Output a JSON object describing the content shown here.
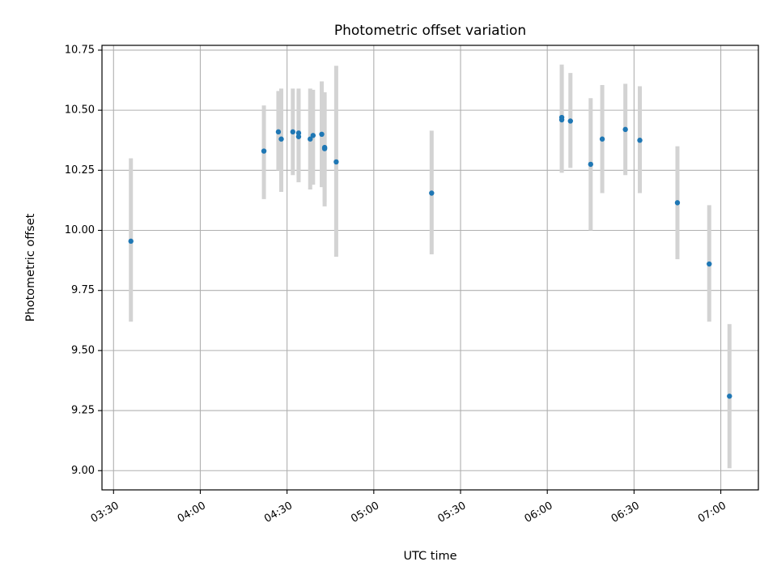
{
  "chart_data": {
    "type": "scatter",
    "title": "Photometric offset variation",
    "xlabel": "UTC time",
    "ylabel": "Photometric offset",
    "xlim": [
      "03:26",
      "07:13"
    ],
    "ylim": [
      8.92,
      10.77
    ],
    "grid": true,
    "legend": "none",
    "x_ticks": [
      "03:30",
      "04:00",
      "04:30",
      "05:00",
      "05:30",
      "06:00",
      "06:30",
      "07:00"
    ],
    "y_ticks": [
      9.0,
      9.25,
      9.5,
      9.75,
      10.0,
      10.25,
      10.5,
      10.75
    ],
    "y_tick_labels": [
      "9.00",
      "9.25",
      "9.50",
      "9.75",
      "10.00",
      "10.25",
      "10.50",
      "10.75"
    ],
    "colors": {
      "points": "#1f77b4",
      "error_bars": "#d3d3d3",
      "grid": "#b0b0b0",
      "axes": "#000000"
    },
    "series": [
      {
        "name": "offset",
        "points": [
          {
            "time": "03:36",
            "y": 9.955,
            "lo": 9.62,
            "hi": 10.3
          },
          {
            "time": "04:22",
            "y": 10.33,
            "lo": 10.13,
            "hi": 10.52
          },
          {
            "time": "04:27",
            "y": 10.41,
            "lo": 10.25,
            "hi": 10.58
          },
          {
            "time": "04:28",
            "y": 10.38,
            "lo": 10.16,
            "hi": 10.59
          },
          {
            "time": "04:32",
            "y": 10.41,
            "lo": 10.23,
            "hi": 10.59
          },
          {
            "time": "04:34",
            "y": 10.405,
            "lo": 10.22,
            "hi": 10.59
          },
          {
            "time": "04:34",
            "y": 10.39,
            "lo": 10.2,
            "hi": 10.575
          },
          {
            "time": "04:38",
            "y": 10.38,
            "lo": 10.17,
            "hi": 10.59
          },
          {
            "time": "04:39",
            "y": 10.395,
            "lo": 10.19,
            "hi": 10.585
          },
          {
            "time": "04:42",
            "y": 10.4,
            "lo": 10.18,
            "hi": 10.62
          },
          {
            "time": "04:43",
            "y": 10.345,
            "lo": 10.12,
            "hi": 10.565
          },
          {
            "time": "04:43",
            "y": 10.34,
            "lo": 10.1,
            "hi": 10.575
          },
          {
            "time": "04:47",
            "y": 10.285,
            "lo": 9.89,
            "hi": 10.685
          },
          {
            "time": "05:20",
            "y": 10.155,
            "lo": 9.9,
            "hi": 10.415
          },
          {
            "time": "06:05",
            "y": 10.47,
            "lo": 10.24,
            "hi": 10.69
          },
          {
            "time": "06:05",
            "y": 10.46,
            "lo": 10.24,
            "hi": 10.68
          },
          {
            "time": "06:08",
            "y": 10.455,
            "lo": 10.26,
            "hi": 10.655
          },
          {
            "time": "06:15",
            "y": 10.275,
            "lo": 10.0,
            "hi": 10.55
          },
          {
            "time": "06:19",
            "y": 10.38,
            "lo": 10.155,
            "hi": 10.605
          },
          {
            "time": "06:27",
            "y": 10.42,
            "lo": 10.23,
            "hi": 10.61
          },
          {
            "time": "06:32",
            "y": 10.375,
            "lo": 10.155,
            "hi": 10.6
          },
          {
            "time": "06:45",
            "y": 10.115,
            "lo": 9.88,
            "hi": 10.35
          },
          {
            "time": "06:56",
            "y": 9.86,
            "lo": 9.62,
            "hi": 10.105
          },
          {
            "time": "07:03",
            "y": 9.31,
            "lo": 9.01,
            "hi": 9.61
          }
        ]
      }
    ]
  }
}
